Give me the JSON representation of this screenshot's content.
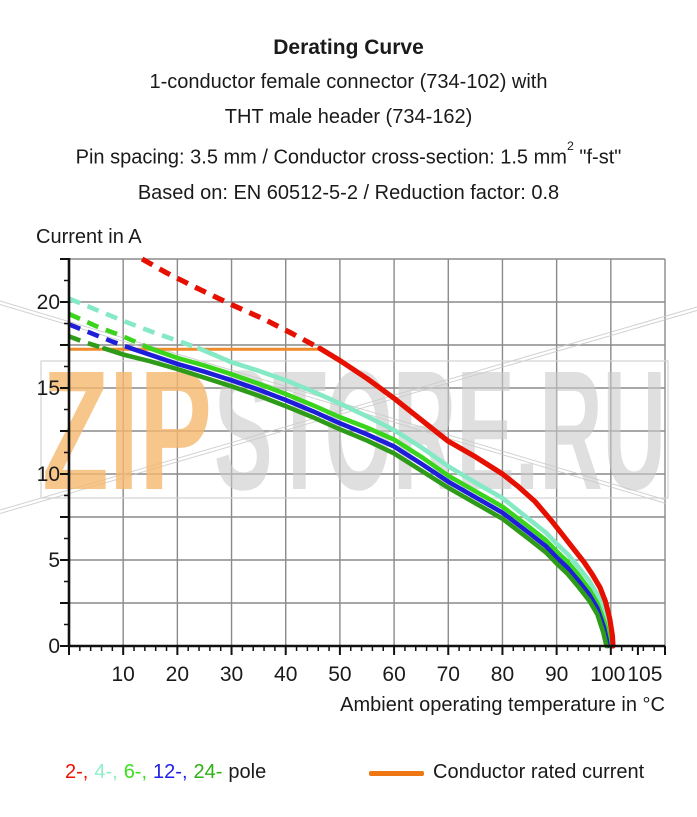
{
  "title": {
    "line1": "Derating Curve",
    "line2": "1-conductor female connector (734-102) with",
    "line3": "THT male header (734-162)",
    "line4_pre": "Pin spacing: 3.5 mm / Conductor cross-section: 1.5 mm",
    "line4_sup": "2",
    "line4_post": " \"f-st\"",
    "line5": "Based on: EN 60512-5-2 / Reduction factor: 0.8"
  },
  "axes": {
    "y_title": "Current in A",
    "x_title": "Ambient operating temperature in °C"
  },
  "watermark": {
    "zip": "ZIP",
    "rest": "STORE.RU",
    "zip_color": "#f5b86e",
    "rest_color": "#c9c9c9"
  },
  "legend": {
    "pole_items": [
      {
        "label": "2-,",
        "color": "#ee1200"
      },
      {
        "label": "4-,",
        "color": "#8feec9"
      },
      {
        "label": "6-,",
        "color": "#3bdf1d"
      },
      {
        "label": "12-,",
        "color": "#2021e8"
      },
      {
        "label": "24-",
        "color": "#2db113"
      }
    ],
    "pole_suffix": "pole",
    "rated_label": "Conductor rated current",
    "rated_color": "#ee7613"
  },
  "chart_data": {
    "type": "line",
    "xlabel": "Ambient operating temperature in °C",
    "ylabel": "Current in A",
    "xlim": [
      0,
      110
    ],
    "ylim": [
      0,
      22.5
    ],
    "x_grid_step": 10,
    "y_grid_step": 2.5,
    "x_tick_labels": [
      10,
      20,
      30,
      40,
      50,
      60,
      70,
      80,
      90,
      100,
      105
    ],
    "y_tick_labels": [
      0,
      5,
      10,
      15,
      20
    ],
    "grid_color": "#8a8a8a",
    "axis_color": "#111111",
    "rated_current": {
      "value": 17.25,
      "x_start": 0,
      "x_end": 46.3,
      "color": "#ef8b2a",
      "label": "Conductor rated current"
    },
    "series": [
      {
        "name": "4-pole",
        "color": "#85e9c5",
        "width": 4.6,
        "dashed": [
          [
            0,
            20.2
          ],
          [
            5,
            19.55
          ],
          [
            10,
            18.9
          ],
          [
            15,
            18.3
          ],
          [
            20,
            17.75
          ],
          [
            24,
            17.3
          ]
        ],
        "solid": [
          [
            24,
            17.3
          ],
          [
            30,
            16.5
          ],
          [
            35,
            16.0
          ],
          [
            40,
            15.45
          ],
          [
            45,
            14.8
          ],
          [
            50,
            14.1
          ],
          [
            55,
            13.35
          ],
          [
            60,
            12.55
          ],
          [
            65,
            11.55
          ],
          [
            70,
            10.45
          ],
          [
            75,
            9.5
          ],
          [
            80,
            8.6
          ],
          [
            85,
            7.35
          ],
          [
            88,
            6.6
          ],
          [
            90,
            5.95
          ],
          [
            92,
            5.35
          ],
          [
            94,
            4.6
          ],
          [
            96,
            3.8
          ],
          [
            97.5,
            3.0
          ],
          [
            98.8,
            2.0
          ],
          [
            99.6,
            1.0
          ],
          [
            100.1,
            0
          ]
        ]
      },
      {
        "name": "6-pole",
        "color": "#3bd41c",
        "width": 4.6,
        "dashed": [
          [
            0,
            19.3
          ],
          [
            5,
            18.6
          ],
          [
            10,
            18.0
          ],
          [
            15,
            17.3
          ]
        ],
        "solid": [
          [
            15,
            17.3
          ],
          [
            20,
            16.75
          ],
          [
            25,
            16.3
          ],
          [
            30,
            15.8
          ],
          [
            35,
            15.25
          ],
          [
            40,
            14.65
          ],
          [
            45,
            14.0
          ],
          [
            50,
            13.3
          ],
          [
            55,
            12.7
          ],
          [
            60,
            12.0
          ],
          [
            65,
            11.0
          ],
          [
            70,
            9.9
          ],
          [
            75,
            9.0
          ],
          [
            80,
            8.1
          ],
          [
            85,
            6.9
          ],
          [
            88,
            6.15
          ],
          [
            90,
            5.5
          ],
          [
            92,
            4.9
          ],
          [
            94,
            4.15
          ],
          [
            96,
            3.3
          ],
          [
            97.5,
            2.5
          ],
          [
            98.8,
            1.4
          ],
          [
            99.5,
            0.5
          ],
          [
            99.7,
            0
          ]
        ]
      },
      {
        "name": "12-pole",
        "color": "#1e1ed8",
        "width": 4.6,
        "dashed": [
          [
            0,
            18.7
          ],
          [
            4,
            18.2
          ],
          [
            8,
            17.7
          ],
          [
            11.5,
            17.3
          ]
        ],
        "solid": [
          [
            11.5,
            17.3
          ],
          [
            20,
            16.4
          ],
          [
            25,
            15.95
          ],
          [
            30,
            15.45
          ],
          [
            35,
            14.9
          ],
          [
            40,
            14.3
          ],
          [
            45,
            13.65
          ],
          [
            50,
            12.95
          ],
          [
            55,
            12.3
          ],
          [
            60,
            11.6
          ],
          [
            65,
            10.6
          ],
          [
            70,
            9.55
          ],
          [
            75,
            8.65
          ],
          [
            80,
            7.75
          ],
          [
            85,
            6.55
          ],
          [
            88,
            5.8
          ],
          [
            90,
            5.15
          ],
          [
            92,
            4.55
          ],
          [
            94,
            3.8
          ],
          [
            96,
            3.0
          ],
          [
            97.5,
            2.2
          ],
          [
            98.7,
            1.1
          ],
          [
            99.3,
            0.3
          ],
          [
            99.4,
            0
          ]
        ]
      },
      {
        "name": "24-pole",
        "color": "#2e9c18",
        "width": 4.6,
        "dashed": [
          [
            0,
            18.0
          ],
          [
            3,
            17.65
          ],
          [
            6.5,
            17.3
          ]
        ],
        "solid": [
          [
            6.5,
            17.3
          ],
          [
            10,
            16.95
          ],
          [
            15,
            16.55
          ],
          [
            20,
            16.1
          ],
          [
            25,
            15.6
          ],
          [
            30,
            15.1
          ],
          [
            35,
            14.55
          ],
          [
            40,
            13.95
          ],
          [
            45,
            13.3
          ],
          [
            50,
            12.6
          ],
          [
            55,
            11.95
          ],
          [
            60,
            11.2
          ],
          [
            65,
            10.2
          ],
          [
            70,
            9.2
          ],
          [
            75,
            8.3
          ],
          [
            80,
            7.4
          ],
          [
            85,
            6.2
          ],
          [
            88,
            5.45
          ],
          [
            90,
            4.8
          ],
          [
            92,
            4.2
          ],
          [
            94,
            3.45
          ],
          [
            96,
            2.65
          ],
          [
            97.5,
            1.85
          ],
          [
            98.6,
            0.8
          ],
          [
            99.1,
            0.15
          ],
          [
            99.2,
            0
          ]
        ]
      },
      {
        "name": "2-pole",
        "color": "#e61000",
        "width": 5.2,
        "dashed": [
          [
            13.5,
            22.5
          ],
          [
            18,
            21.7
          ],
          [
            24,
            20.75
          ],
          [
            30,
            19.85
          ],
          [
            36,
            19.0
          ],
          [
            41,
            18.2
          ],
          [
            46.3,
            17.3
          ]
        ],
        "solid": [
          [
            46.3,
            17.3
          ],
          [
            50,
            16.6
          ],
          [
            55,
            15.55
          ],
          [
            60,
            14.4
          ],
          [
            65,
            13.15
          ],
          [
            70,
            11.9
          ],
          [
            75,
            11.0
          ],
          [
            80,
            10.0
          ],
          [
            83,
            9.25
          ],
          [
            86,
            8.4
          ],
          [
            89,
            7.3
          ],
          [
            91,
            6.5
          ],
          [
            93,
            5.7
          ],
          [
            95,
            4.9
          ],
          [
            96.5,
            4.2
          ],
          [
            98,
            3.4
          ],
          [
            99,
            2.6
          ],
          [
            99.8,
            1.6
          ],
          [
            100.3,
            0.6
          ],
          [
            100.4,
            0
          ]
        ]
      }
    ]
  }
}
